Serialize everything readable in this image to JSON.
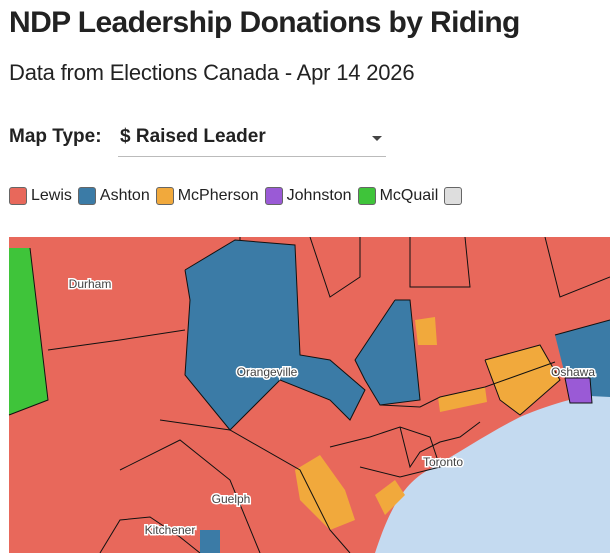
{
  "header": {
    "title": "NDP Leadership Donations by Riding",
    "subtitle": "Data from Elections Canada - Apr 14 2026"
  },
  "controls": {
    "label": "Map Type:",
    "selected": "$ Raised Leader"
  },
  "legend": [
    {
      "name": "Lewis",
      "color": "#e8685b"
    },
    {
      "name": "Ashton",
      "color": "#3b7ba6"
    },
    {
      "name": "McPherson",
      "color": "#f1a93c"
    },
    {
      "name": "Johnston",
      "color": "#9a5ad6"
    },
    {
      "name": "McQuail",
      "color": "#3fc43a"
    },
    {
      "color": "#dedede"
    }
  ],
  "map": {
    "places": [
      {
        "label": "Durham"
      },
      {
        "label": "Orangeville"
      },
      {
        "label": "Toronto"
      },
      {
        "label": "Oshawa"
      },
      {
        "label": "Guelph"
      },
      {
        "label": "Kitchener"
      }
    ]
  }
}
